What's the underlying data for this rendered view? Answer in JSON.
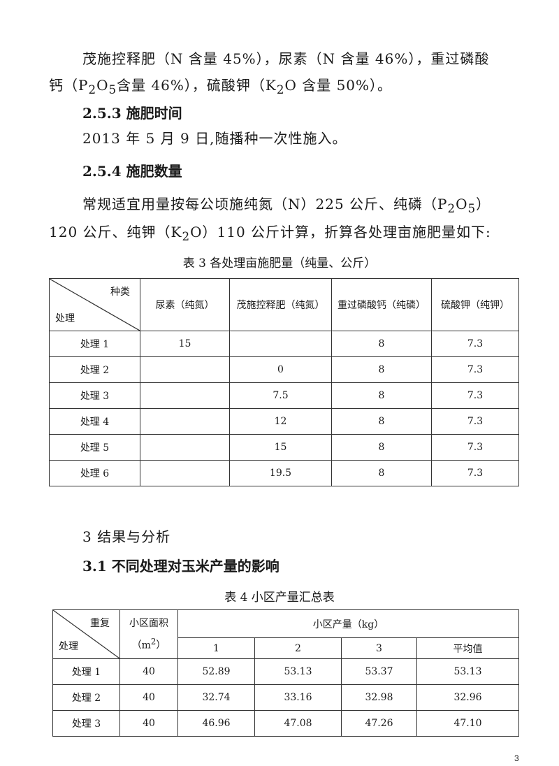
{
  "paragraphs": {
    "p1a": "茂施控释肥（N 含量 45%），尿素（N 含量 46%），重过磷酸",
    "p1b_pre": "钙（P",
    "p1b_s1": "2",
    "p1b_m1": "O",
    "p1b_s2": "5",
    "p1b_m2": "含量 46%），硫酸钾（K",
    "p1b_s3": "2",
    "p1b_post": "O 含量 50%）。",
    "h253": "2.5.3  施肥时间",
    "p2": "2013 年 5 月 9 日,随播种一次性施入。",
    "h254": "2.5.4  施肥数量",
    "p3a_pre": "常规适宜用量按每公顷施纯氮（N）225 公斤、纯磷（P",
    "p3a_s1": "2",
    "p3a_m": "O",
    "p3a_s2": "5",
    "p3a_post": "）",
    "p3b_pre": "120 公斤、纯钾（K",
    "p3b_s": "2",
    "p3b_post": "O）110 公斤计算，折算各处理亩施肥量如下:",
    "h3": "3  结果与分析",
    "h31": "3.1  不同处理对玉米产量的影响"
  },
  "table3": {
    "caption": "表 3  各处理亩施肥量（纯量、公斤）",
    "corner_top": "种类",
    "corner_bottom": "处理",
    "headers": [
      "尿素（纯氮）",
      "茂施控释肥（纯氮）",
      "重过磷酸钙（纯磷）",
      "硫酸钾（纯钾）"
    ],
    "rows": [
      [
        "处理 1",
        "15",
        "",
        "8",
        "7.3"
      ],
      [
        "处理 2",
        "",
        "0",
        "8",
        "7.3"
      ],
      [
        "处理 3",
        "",
        "7.5",
        "8",
        "7.3"
      ],
      [
        "处理 4",
        "",
        "12",
        "8",
        "7.3"
      ],
      [
        "处理 5",
        "",
        "15",
        "8",
        "7.3"
      ],
      [
        "处理 6",
        "",
        "19.5",
        "8",
        "7.3"
      ]
    ]
  },
  "table4": {
    "caption": "表 4    小区产量汇总表",
    "corner_top": "重复",
    "corner_bottom": "处理",
    "area_header": "小区面积",
    "area_unit_pre": "（m",
    "area_unit_sup": "2",
    "area_unit_post": "）",
    "yield_header": "小区产量（kg）",
    "sub_headers": [
      "1",
      "2",
      "3",
      "平均值"
    ],
    "rows": [
      [
        "处理 1",
        "40",
        "52.89",
        "53.13",
        "53.37",
        "53.13"
      ],
      [
        "处理 2",
        "40",
        "32.74",
        "33.16",
        "32.98",
        "32.96"
      ],
      [
        "处理 3",
        "40",
        "46.96",
        "47.08",
        "47.26",
        "47.10"
      ]
    ]
  },
  "page_number": "3"
}
